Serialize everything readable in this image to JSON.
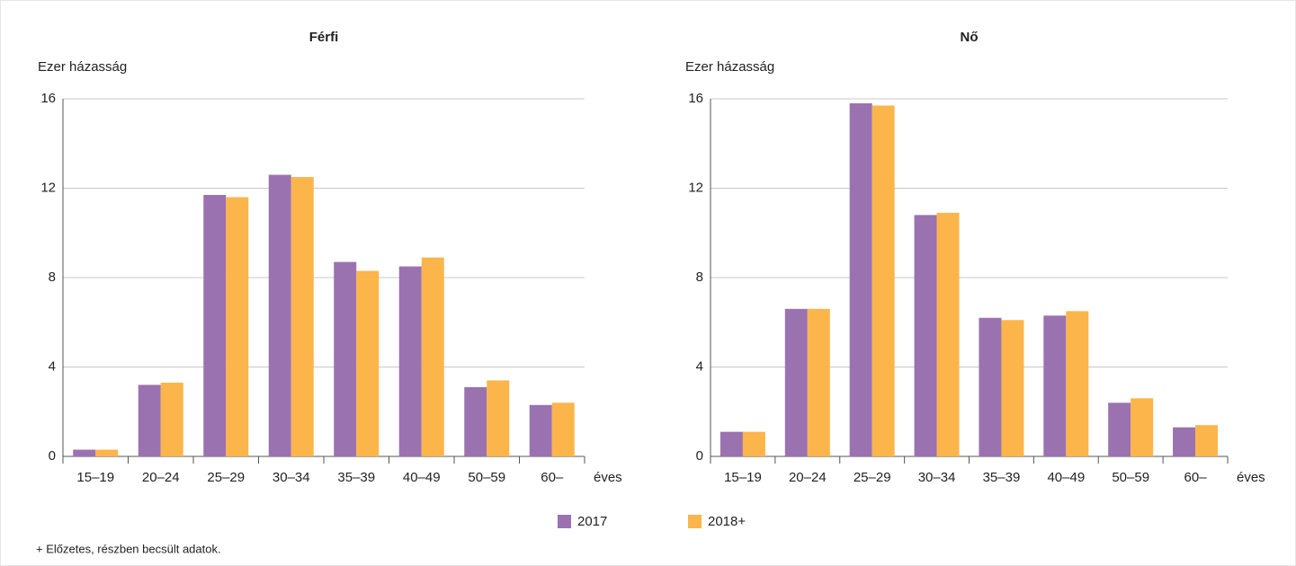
{
  "chart_data": [
    {
      "type": "bar",
      "title": "Férfi",
      "y_label": "Ezer házasság",
      "x_label": "éves",
      "categories": [
        "15–19",
        "20–24",
        "25–29",
        "30–34",
        "35–39",
        "40–49",
        "50–59",
        "60–"
      ],
      "series": [
        {
          "name": "2017",
          "color": "#9b72b0",
          "values": [
            0.3,
            3.2,
            11.7,
            12.6,
            8.7,
            8.5,
            3.1,
            2.3
          ]
        },
        {
          "name": "2018+",
          "color": "#fbb54a",
          "values": [
            0.3,
            3.3,
            11.6,
            12.5,
            8.3,
            8.9,
            3.4,
            2.4
          ]
        }
      ],
      "ylim": [
        0,
        16
      ],
      "yticks": [
        0,
        4,
        8,
        12,
        16
      ],
      "grid": true
    },
    {
      "type": "bar",
      "title": "Nő",
      "y_label": "Ezer házasság",
      "x_label": "éves",
      "categories": [
        "15–19",
        "20–24",
        "25–29",
        "30–34",
        "35–39",
        "40–49",
        "50–59",
        "60–"
      ],
      "series": [
        {
          "name": "2017",
          "color": "#9b72b0",
          "values": [
            1.1,
            6.6,
            15.8,
            10.8,
            6.2,
            6.3,
            2.4,
            1.3
          ]
        },
        {
          "name": "2018+",
          "color": "#fbb54a",
          "values": [
            1.1,
            6.6,
            15.7,
            10.9,
            6.1,
            6.5,
            2.6,
            1.4
          ]
        }
      ],
      "ylim": [
        0,
        16
      ],
      "yticks": [
        0,
        4,
        8,
        12,
        16
      ],
      "grid": true
    }
  ],
  "footnote": "+ Előzetes, részben becsült adatok."
}
